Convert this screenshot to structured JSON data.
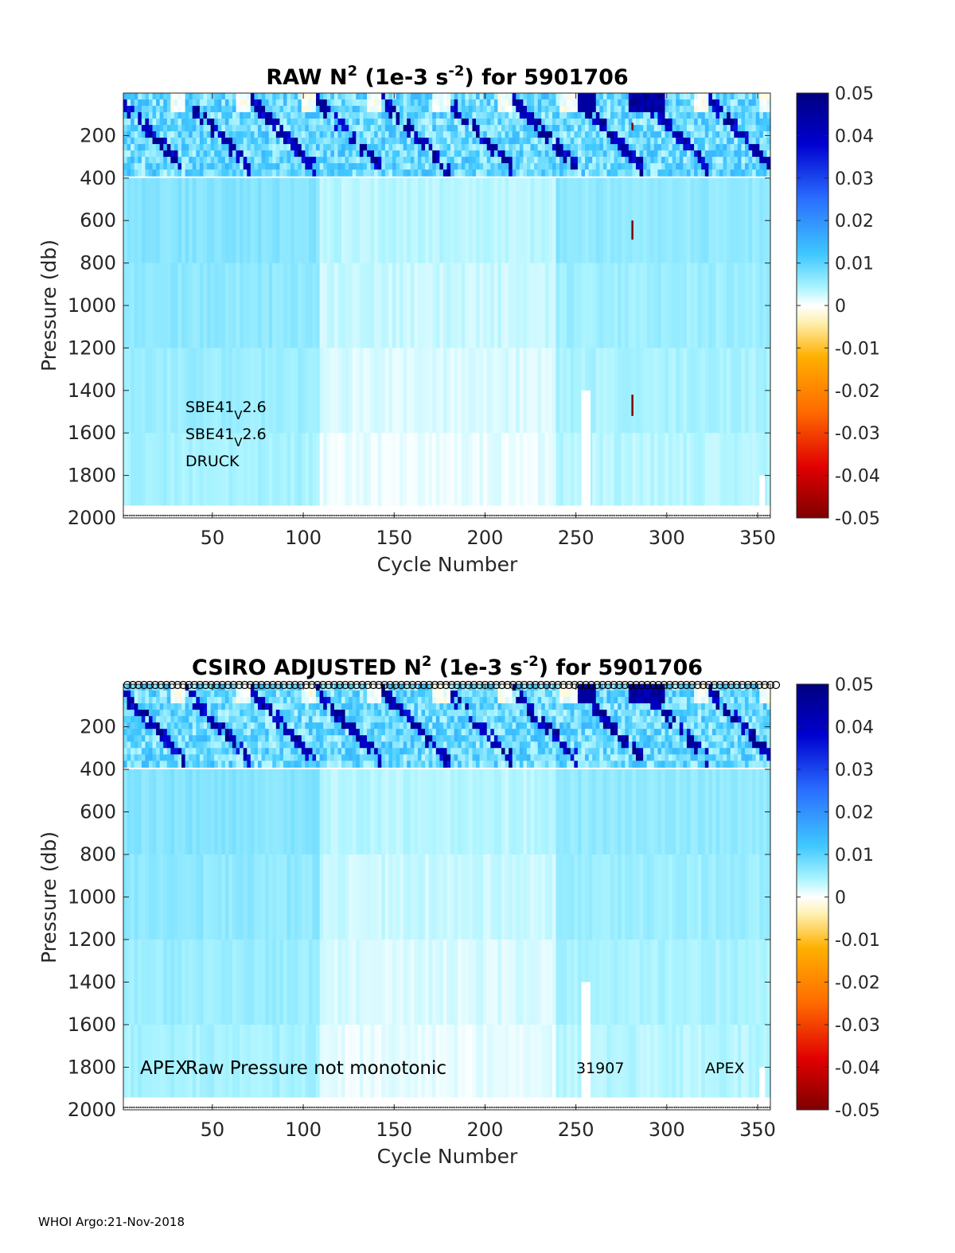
{
  "footer": "WHOI Argo:21-Nov-2018",
  "chart_data": [
    {
      "type": "heatmap",
      "title_pre": "RAW N",
      "title_sup": "2",
      "title_mid": " (1e-3 s",
      "title_sup2": "-2",
      "title_post": ") for 5901706",
      "xlabel": "Cycle Number",
      "ylabel": "Pressure (db)",
      "xlim": [
        1,
        357
      ],
      "ylim": [
        0,
        2000
      ],
      "y_reversed": true,
      "xticks": [
        50,
        100,
        150,
        200,
        250,
        300,
        350
      ],
      "yticks": [
        200,
        400,
        600,
        800,
        1000,
        1200,
        1400,
        1600,
        1800,
        2000
      ],
      "colorbar": {
        "range": [
          -0.05,
          0.05
        ],
        "ticks": [
          "0.05",
          "0.04",
          "0.03",
          "0.02",
          "0.01",
          "0",
          "-0.01",
          "-0.02",
          "-0.03",
          "-0.04",
          "-0.05"
        ],
        "colormap": "jet-white-center"
      },
      "annotations": [
        {
          "base": "SBE41",
          "sub": "V",
          "rest": "2.6"
        },
        {
          "base": "SBE41",
          "sub": "V",
          "rest": "2.6"
        },
        {
          "base": "DRUCK",
          "sub": "",
          "rest": ""
        }
      ],
      "colors": {
        "strong_positive": "#00007f",
        "upper_ocean": "#7fdfff",
        "deep_ocean": "#c8f5e8",
        "near_zero": "#fff6d5",
        "spike": "#7f0000"
      }
    },
    {
      "type": "heatmap",
      "title_pre": "CSIRO  ADJUSTED N",
      "title_sup": "2",
      "title_mid": " (1e-3 s",
      "title_sup2": "-2",
      "title_post": ") for 5901706",
      "xlabel": "Cycle Number",
      "ylabel": "Pressure (db)",
      "xlim": [
        1,
        357
      ],
      "ylim": [
        0,
        2000
      ],
      "y_reversed": true,
      "xticks": [
        50,
        100,
        150,
        200,
        250,
        300,
        350
      ],
      "yticks": [
        200,
        400,
        600,
        800,
        1000,
        1200,
        1400,
        1600,
        1800,
        2000
      ],
      "colorbar": {
        "range": [
          -0.05,
          0.05
        ],
        "ticks": [
          "0.05",
          "0.04",
          "0.03",
          "0.02",
          "0.01",
          "0",
          "-0.01",
          "-0.02",
          "-0.03",
          "-0.04",
          "-0.05"
        ],
        "colormap": "jet-white-center"
      },
      "annotations": [
        {
          "text": "APEX"
        },
        {
          "text": "Raw Pressure not monotonic"
        },
        {
          "text": "31907"
        },
        {
          "text": "APEX"
        }
      ],
      "qc_marker_row": "circles along top for every cycle"
    }
  ]
}
